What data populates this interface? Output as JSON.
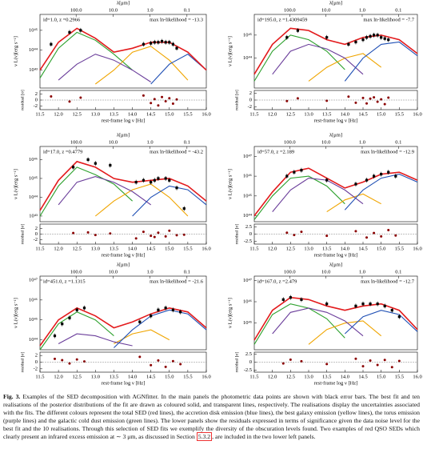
{
  "figure": {
    "top_axis_label": "λ[μm]",
    "top_ticks": [
      {
        "value": 100,
        "label": "100.0"
      },
      {
        "value": 10,
        "label": "10.0"
      },
      {
        "value": 1,
        "label": "1.0"
      },
      {
        "value": 0.1,
        "label": "0.1"
      }
    ],
    "y_label": "ν L(ν)[erg s⁻¹]",
    "residual_label": "residual [σ]",
    "x_label": "rest-frame log ν [Hz]",
    "xlim": [
      11.5,
      16.0
    ],
    "xticks": [
      11.5,
      {
        "value": 12,
        "label": "12.0"
      },
      12.5,
      {
        "value": 13,
        "label": "13.0"
      },
      13.5,
      {
        "value": 14,
        "label": "14.0"
      },
      14.5,
      {
        "value": 15,
        "label": "15.0"
      },
      15.5,
      {
        "value": 16,
        "label": "16.0"
      }
    ],
    "x": [
      11.5,
      12.0,
      12.5,
      13.0,
      13.5,
      14.0,
      14.5,
      15.0,
      15.5,
      16.0
    ],
    "panels": [
      {
        "id_text": "id=1.0, z =0.2966",
        "likelihood": "max ln-likelihood = -13.3",
        "ylim": [
          42.1,
          45.8
        ],
        "yticks": [
          {
            "value": 45,
            "label": "10⁴⁵"
          },
          {
            "value": 44,
            "label": "10⁴⁴"
          },
          {
            "value": 43,
            "label": "10⁴³"
          }
        ],
        "series": [
          {
            "color": "#2ca02c",
            "values": [
              42.6,
              44.1,
              44.9,
              44.5,
              43.8,
              43.0,
              null,
              null,
              null,
              null
            ]
          },
          {
            "color": "#f0a500",
            "values": [
              null,
              null,
              null,
              42.3,
              43.0,
              43.9,
              44.2,
              43.5,
              42.5,
              null
            ]
          },
          {
            "color": "#6a3d9a",
            "values": [
              null,
              42.5,
              43.3,
              43.8,
              43.5,
              43.0,
              42.4,
              null,
              null,
              null
            ]
          },
          {
            "color": "#1f4fb4",
            "values": [
              null,
              null,
              null,
              null,
              null,
              null,
              42.3,
              43.3,
              43.8,
              43.0
            ]
          },
          {
            "color": "#e31a1c",
            "values": [
              43.0,
              44.4,
              45.1,
              44.6,
              43.9,
              44.1,
              44.4,
              44.4,
              43.9,
              43.0
            ]
          }
        ],
        "points": {
          "x": [
            11.8,
            12.3,
            12.6,
            14.3,
            14.5,
            14.6,
            14.7,
            14.8,
            14.9,
            15.0,
            15.1,
            15.2
          ],
          "values": [
            44.3,
            44.9,
            45.0,
            44.3,
            44.35,
            44.4,
            44.4,
            44.45,
            44.4,
            44.4,
            44.3,
            44.1
          ],
          "residuals": [
            1.2,
            -0.5,
            0.8,
            1.5,
            -1.0,
            0.3,
            -1.8,
            1.0,
            -0.4,
            0.6,
            -1.2,
            0.2
          ]
        },
        "residual_ylim": [
          -3.2,
          3.2
        ],
        "residual_ticks": [
          2,
          0,
          -2
        ]
      },
      {
        "id_text": "id=195.0, z =1.4309459",
        "likelihood": "max ln-likelihood = -7.7",
        "ylim": [
          42.7,
          45.9
        ],
        "yticks": [
          {
            "value": 45,
            "label": "10⁴⁵"
          },
          {
            "value": 44,
            "label": "10⁴⁴"
          }
        ],
        "series": [
          {
            "color": "#2ca02c",
            "values": [
              43.0,
              44.3,
              45.0,
              44.8,
              44.3,
              43.5,
              null,
              null,
              null,
              null
            ]
          },
          {
            "color": "#f0a500",
            "values": [
              null,
              null,
              null,
              43.0,
              43.6,
              44.0,
              44.2,
              43.6,
              null,
              null
            ]
          },
          {
            "color": "#6a3d9a",
            "values": [
              null,
              43.3,
              44.3,
              44.6,
              44.4,
              44.0,
              43.3,
              null,
              null,
              null
            ]
          },
          {
            "color": "#1f4fb4",
            "values": [
              null,
              null,
              null,
              null,
              null,
              43.0,
              44.0,
              44.6,
              44.7,
              44.1
            ]
          },
          {
            "color": "#e31a1c",
            "values": [
              43.3,
              44.6,
              45.3,
              45.2,
              44.8,
              44.6,
              44.9,
              45.0,
              44.8,
              44.2
            ]
          }
        ],
        "points": {
          "x": [
            12.4,
            12.7,
            13.5,
            14.1,
            14.3,
            14.5,
            14.6,
            14.7,
            14.8,
            14.9,
            15.0,
            15.1,
            15.2
          ],
          "values": [
            44.9,
            45.2,
            44.9,
            44.6,
            44.7,
            44.8,
            44.9,
            44.95,
            45.0,
            45.0,
            44.9,
            44.85,
            44.8
          ],
          "residuals": [
            -0.3,
            0.5,
            -0.2,
            1.0,
            -0.8,
            0.6,
            -1.0,
            0.4,
            0.8,
            -0.5,
            0.2,
            -1.2,
            0.7
          ]
        },
        "residual_ylim": [
          -2.8,
          2.8
        ],
        "residual_ticks": [
          2,
          0,
          -2
        ]
      },
      {
        "id_text": "id=17.0, z =0.4779",
        "likelihood": "max ln-likelihood = -43.2",
        "ylim": [
          42.7,
          46.7
        ],
        "yticks": [
          {
            "value": 46,
            "label": "10⁴⁶"
          },
          {
            "value": 45,
            "label": "10⁴⁵"
          },
          {
            "value": 44,
            "label": "10⁴⁴"
          },
          {
            "value": 43,
            "label": "10⁴³"
          }
        ],
        "series": [
          {
            "color": "#2ca02c",
            "values": [
              43.0,
              44.6,
              45.6,
              45.2,
              44.7,
              43.8,
              null,
              null,
              null,
              null
            ]
          },
          {
            "color": "#f0a500",
            "values": [
              null,
              null,
              null,
              43.0,
              43.8,
              44.4,
              44.7,
              44.0,
              43.0,
              null
            ]
          },
          {
            "color": "#6a3d9a",
            "values": [
              null,
              43.6,
              44.8,
              45.1,
              44.8,
              44.3,
              43.6,
              null,
              null,
              null
            ]
          },
          {
            "color": "#1f4fb4",
            "values": [
              null,
              null,
              null,
              null,
              null,
              43.0,
              44.0,
              44.6,
              44.4,
              43.6
            ]
          },
          {
            "color": "#e31a1c",
            "values": [
              43.3,
              44.9,
              45.9,
              45.6,
              45.0,
              44.8,
              44.9,
              45.0,
              44.6,
              43.8
            ]
          }
        ],
        "points": {
          "x": [
            12.4,
            12.8,
            13.0,
            13.4,
            14.1,
            14.3,
            14.5,
            14.6,
            14.7,
            14.9,
            15.0,
            15.2,
            15.4
          ],
          "values": [
            45.6,
            46.0,
            45.8,
            45.7,
            44.8,
            44.9,
            44.8,
            44.9,
            45.0,
            45.0,
            44.9,
            44.5,
            43.4
          ],
          "residuals": [
            0.4,
            0.6,
            -0.3,
            0.2,
            -1.5,
            0.8,
            -0.6,
            -1.0,
            0.5,
            -0.8,
            1.2,
            -0.4,
            -0.2
          ]
        },
        "residual_ylim": [
          -3.5,
          3.5
        ],
        "residual_ticks": [
          2,
          0,
          -2
        ]
      },
      {
        "id_text": "id=57.0, z =2.189",
        "likelihood": "max ln-likelihood = -12.9",
        "ylim": [
          43.7,
          47.5
        ],
        "yticks": [
          {
            "value": 47,
            "label": "10⁴⁷"
          },
          {
            "value": 46,
            "label": "10⁴⁶"
          },
          {
            "value": 45,
            "label": "10⁴⁵"
          },
          {
            "value": 44,
            "label": "10⁴⁴"
          }
        ],
        "series": [
          {
            "color": "#2ca02c",
            "values": [
              43.8,
              45.0,
              45.9,
              46.0,
              45.5,
              44.6,
              null,
              null,
              null,
              null
            ]
          },
          {
            "color": "#f0a500",
            "values": [
              null,
              null,
              null,
              null,
              44.2,
              44.8,
              45.1,
              44.6,
              null,
              null
            ]
          },
          {
            "color": "#6a3d9a",
            "values": [
              null,
              44.2,
              45.3,
              45.9,
              45.8,
              45.3,
              44.6,
              null,
              null,
              null
            ]
          },
          {
            "color": "#1f4fb4",
            "values": [
              null,
              null,
              null,
              null,
              null,
              44.3,
              45.3,
              45.9,
              46.1,
              45.7
            ]
          },
          {
            "color": "#e31a1c",
            "values": [
              44.0,
              45.2,
              46.2,
              46.4,
              45.9,
              45.4,
              45.7,
              46.1,
              46.2,
              45.8
            ]
          }
        ],
        "points": {
          "x": [
            12.4,
            12.6,
            12.8,
            13.5,
            14.3,
            14.6,
            14.8,
            15.0,
            15.2,
            15.4
          ],
          "values": [
            46.0,
            46.2,
            46.3,
            45.8,
            45.6,
            45.8,
            46.0,
            46.1,
            46.2,
            46.0
          ],
          "residuals": [
            0.5,
            -0.3,
            0.8,
            -0.6,
            1.0,
            -1.2,
            0.4,
            -0.8,
            1.4,
            -0.5
          ]
        },
        "residual_ylim": [
          -3.5,
          3.5
        ],
        "residual_ticks": [
          2.5,
          0,
          -2.5
        ]
      },
      {
        "id_text": "id=451.0, z =1.1315",
        "likelihood": "max ln-likelihood = -21.6",
        "ylim": [
          43.5,
          47.2
        ],
        "yticks": [
          {
            "value": 47,
            "label": "10⁴⁷"
          },
          {
            "value": 46,
            "label": "10⁴⁶"
          },
          {
            "value": 45,
            "label": "10⁴⁵"
          },
          {
            "value": 44,
            "label": "10⁴⁴"
          }
        ],
        "series": [
          {
            "color": "#2ca02c",
            "values": [
              43.5,
              44.8,
              45.4,
              45.0,
              44.2,
              null,
              null,
              null,
              null,
              null
            ]
          },
          {
            "color": "#f0a500",
            "values": [
              null,
              null,
              null,
              null,
              43.8,
              44.3,
              44.5,
              44.0,
              null,
              null
            ]
          },
          {
            "color": "#6a3d9a",
            "values": [
              null,
              43.8,
              44.3,
              44.2,
              43.9,
              43.7,
              null,
              null,
              null,
              null
            ]
          },
          {
            "color": "#1f4fb4",
            "values": [
              null,
              null,
              null,
              null,
              43.6,
              44.5,
              45.2,
              45.5,
              45.3,
              44.5
            ]
          },
          {
            "color": "#e31a1c",
            "values": [
              43.7,
              45.0,
              45.6,
              45.2,
              44.6,
              44.9,
              45.3,
              45.6,
              45.4,
              44.6
            ]
          }
        ],
        "points": {
          "x": [
            11.9,
            12.1,
            12.3,
            12.5,
            12.7,
            14.2,
            14.5,
            14.7,
            14.9,
            15.1,
            15.3
          ],
          "values": [
            44.2,
            44.8,
            45.1,
            45.5,
            45.6,
            44.9,
            45.2,
            45.5,
            45.6,
            45.5,
            45.4
          ],
          "residuals": [
            1.0,
            0.6,
            -0.4,
            0.8,
            0.2,
            1.6,
            -0.9,
            0.5,
            -1.4,
            0.3,
            -0.6
          ]
        },
        "residual_ylim": [
          -3,
          3
        ],
        "residual_ticks": [
          2,
          0,
          -2
        ]
      },
      {
        "id_text": "id=167.0, z =2.479",
        "likelihood": "max ln-likelihood = -12.7",
        "ylim": [
          43.75,
          47.2
        ],
        "yticks": [
          {
            "value": 47,
            "label": "10⁴⁷"
          },
          {
            "value": 46,
            "label": "10⁴⁶"
          },
          {
            "value": 45,
            "label": "10⁴⁵"
          }
        ],
        "series": [
          {
            "color": "#2ca02c",
            "values": [
              44.0,
              45.4,
              45.9,
              45.7,
              45.2,
              44.3,
              null,
              null,
              null,
              null
            ]
          },
          {
            "color": "#f0a500",
            "values": [
              null,
              null,
              null,
              44.0,
              44.7,
              45.0,
              45.1,
              44.4,
              null,
              null
            ]
          },
          {
            "color": "#6a3d9a",
            "values": [
              null,
              44.5,
              45.5,
              45.7,
              45.5,
              45.1,
              44.4,
              null,
              null,
              null
            ]
          },
          {
            "color": "#1f4fb4",
            "values": [
              null,
              null,
              null,
              null,
              null,
              44.5,
              45.3,
              45.6,
              45.4,
              44.6
            ]
          },
          {
            "color": "#e31a1c",
            "values": [
              44.2,
              45.6,
              46.2,
              46.1,
              45.8,
              45.6,
              45.8,
              45.9,
              45.6,
              44.7
            ]
          }
        ],
        "points": {
          "x": [
            12.3,
            12.5,
            12.8,
            13.5,
            14.3,
            14.5,
            14.7,
            14.9,
            15.1,
            15.3,
            15.5
          ],
          "values": [
            46.1,
            46.2,
            46.1,
            45.9,
            45.8,
            45.9,
            45.9,
            45.9,
            45.8,
            45.6,
            45.3
          ],
          "residuals": [
            -0.4,
            0.8,
            0.3,
            -0.6,
            1.1,
            -1.3,
            0.5,
            -0.9,
            0.7,
            -1.6,
            0.4
          ]
        },
        "residual_ylim": [
          -3.2,
          3.2
        ],
        "residual_ticks": [
          2.5,
          0,
          -2.5
        ]
      }
    ]
  },
  "caption": {
    "label": "Fig. 3.",
    "text": " Examples of the SED decomposition with AGNfitter. In the main panels the photometric data points are shown with black error bars. The best fit and ten realisations of the posterior distributions of the fit are drawn as coloured solid, and transparent lines, respectively. The realisations display the uncertainties associated with the fits. The different colours represent the total SED (red lines), the accretion disk emission (blue lines), the best galaxy emission (yellow lines), the torus emission (purple lines) and the galactic cold dust emission (green lines). The lower panels show the residuals expressed in terms of significance given the data noise level for the best fit and the 10 realisations. Through this selection of SED fits we exemplify the diversity of the obscuration levels found. Two examples of red QSO SEDs which clearly present an infrared excess emission at ∼ 3 μm, as discussed in Section ",
    "link": "5.3.2",
    "text_end": ", are included in the two lower left panels."
  }
}
